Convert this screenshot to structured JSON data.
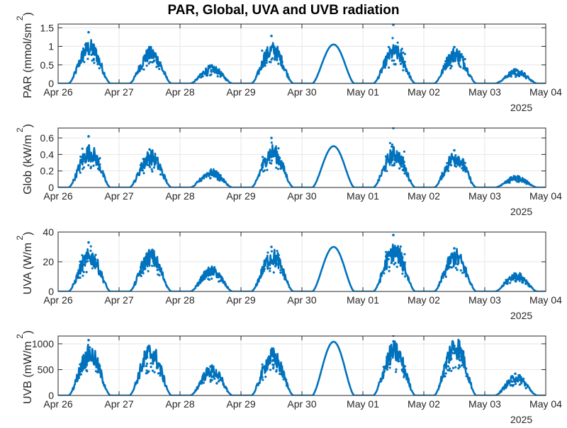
{
  "figure": {
    "title": "PAR, Global, UVA and UVB radiation",
    "x_tick_labels": [
      "Apr 26",
      "Apr 27",
      "Apr 28",
      "Apr 29",
      "Apr 30",
      "May 01",
      "May 02",
      "May 03",
      "May 04"
    ],
    "x_secondary_label": "2025",
    "line_color": "#0072BD",
    "grid_color": "#e6e6e6",
    "axis_color": "#262626"
  },
  "chart_data": [
    {
      "type": "line",
      "title": "PAR, Global, UVA and UVB radiation",
      "xlabel": "",
      "ylabel": "PAR (mmol/sm",
      "ylabel_superscript": "2",
      "ylabel_suffix": ")",
      "x_range": [
        "2025-04-26",
        "2025-05-04"
      ],
      "ylim": [
        0,
        1.6
      ],
      "yticks": [
        0,
        0.5,
        1,
        1.5
      ],
      "ytick_labels": [
        "0",
        "0.5",
        "1",
        "1.5"
      ],
      "grid": true,
      "series": [
        {
          "daily_peaks": [
            {
              "date": "2025-04-26",
              "peak": 0.9,
              "max_spike": 1.38,
              "noisy": true
            },
            {
              "date": "2025-04-27",
              "peak": 0.75,
              "max_spike": 0.98,
              "noisy": true
            },
            {
              "date": "2025-04-28",
              "peak": 0.38,
              "max_spike": 0.45,
              "noisy": true
            },
            {
              "date": "2025-04-29",
              "peak": 0.85,
              "max_spike": 1.28,
              "noisy": true
            },
            {
              "date": "2025-04-30",
              "peak": 1.05,
              "max_spike": 1.05,
              "noisy": false
            },
            {
              "date": "2025-05-01",
              "peak": 0.8,
              "max_spike": 1.58,
              "noisy": true
            },
            {
              "date": "2025-05-02",
              "peak": 0.75,
              "max_spike": 0.98,
              "noisy": true
            },
            {
              "date": "2025-05-03",
              "peak": 0.3,
              "max_spike": 0.35,
              "noisy": true
            }
          ]
        }
      ]
    },
    {
      "type": "line",
      "xlabel": "",
      "ylabel": "Glob (kW/m",
      "ylabel_superscript": "2",
      "ylabel_suffix": ")",
      "x_range": [
        "2025-04-26",
        "2025-05-04"
      ],
      "ylim": [
        0,
        0.72
      ],
      "yticks": [
        0,
        0.2,
        0.4,
        0.6
      ],
      "ytick_labels": [
        "0",
        "0.2",
        "0.4",
        "0.6"
      ],
      "grid": true,
      "series": [
        {
          "daily_peaks": [
            {
              "date": "2025-04-26",
              "peak": 0.4,
              "max_spike": 0.62,
              "noisy": true
            },
            {
              "date": "2025-04-27",
              "peak": 0.35,
              "max_spike": 0.46,
              "noisy": true
            },
            {
              "date": "2025-04-28",
              "peak": 0.17,
              "max_spike": 0.2,
              "noisy": true
            },
            {
              "date": "2025-04-29",
              "peak": 0.4,
              "max_spike": 0.6,
              "noisy": true
            },
            {
              "date": "2025-04-30",
              "peak": 0.5,
              "max_spike": 0.5,
              "noisy": false
            },
            {
              "date": "2025-05-01",
              "peak": 0.38,
              "max_spike": 0.72,
              "noisy": true
            },
            {
              "date": "2025-05-02",
              "peak": 0.35,
              "max_spike": 0.45,
              "noisy": true
            },
            {
              "date": "2025-05-03",
              "peak": 0.11,
              "max_spike": 0.13,
              "noisy": true
            }
          ]
        }
      ]
    },
    {
      "type": "line",
      "xlabel": "",
      "ylabel": "UVA (W/m",
      "ylabel_superscript": "2",
      "ylabel_suffix": ")",
      "x_range": [
        "2025-04-26",
        "2025-05-04"
      ],
      "ylim": [
        0,
        40
      ],
      "yticks": [
        0,
        20,
        40
      ],
      "ytick_labels": [
        "0",
        "20",
        "40"
      ],
      "grid": true,
      "series": [
        {
          "daily_peaks": [
            {
              "date": "2025-04-26",
              "peak": 22,
              "max_spike": 33,
              "noisy": true
            },
            {
              "date": "2025-04-27",
              "peak": 22,
              "max_spike": 26,
              "noisy": true
            },
            {
              "date": "2025-04-28",
              "peak": 13,
              "max_spike": 15,
              "noisy": true
            },
            {
              "date": "2025-04-29",
              "peak": 22,
              "max_spike": 30,
              "noisy": true
            },
            {
              "date": "2025-04-30",
              "peak": 30,
              "max_spike": 30,
              "noisy": false
            },
            {
              "date": "2025-05-01",
              "peak": 25,
              "max_spike": 38,
              "noisy": true
            },
            {
              "date": "2025-05-02",
              "peak": 22,
              "max_spike": 29,
              "noisy": true
            },
            {
              "date": "2025-05-03",
              "peak": 10,
              "max_spike": 12,
              "noisy": true
            }
          ]
        }
      ]
    },
    {
      "type": "line",
      "xlabel": "",
      "ylabel": "UVB (mW/m",
      "ylabel_superscript": "2",
      "ylabel_suffix": ")",
      "x_range": [
        "2025-04-26",
        "2025-05-04"
      ],
      "ylim": [
        0,
        1150
      ],
      "yticks": [
        0,
        500,
        1000
      ],
      "ytick_labels": [
        "0",
        "500",
        "1000"
      ],
      "grid": true,
      "series": [
        {
          "daily_peaks": [
            {
              "date": "2025-04-26",
              "peak": 750,
              "max_spike": 1070,
              "noisy": true
            },
            {
              "date": "2025-04-27",
              "peak": 780,
              "max_spike": 860,
              "noisy": true
            },
            {
              "date": "2025-04-28",
              "peak": 450,
              "max_spike": 560,
              "noisy": true
            },
            {
              "date": "2025-04-29",
              "peak": 700,
              "max_spike": 860,
              "noisy": true
            },
            {
              "date": "2025-04-30",
              "peak": 1040,
              "max_spike": 1040,
              "noisy": false
            },
            {
              "date": "2025-05-01",
              "peak": 800,
              "max_spike": 1160,
              "noisy": true
            },
            {
              "date": "2025-05-02",
              "peak": 900,
              "max_spike": 960,
              "noisy": true
            },
            {
              "date": "2025-05-03",
              "peak": 320,
              "max_spike": 420,
              "noisy": true
            }
          ]
        }
      ]
    }
  ]
}
